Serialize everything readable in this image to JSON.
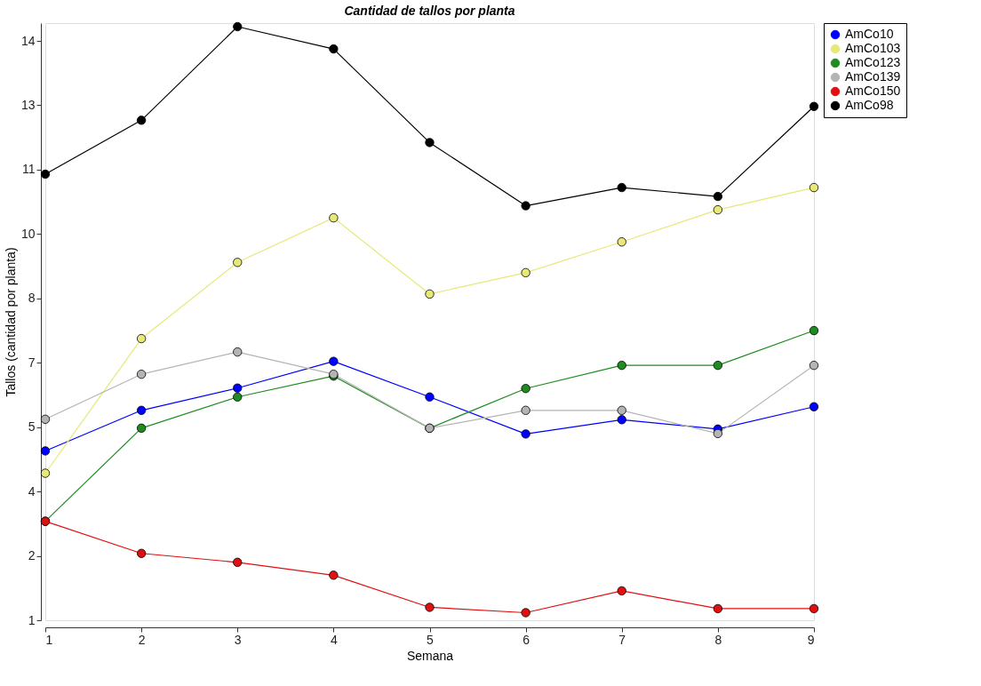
{
  "chart_data": {
    "type": "line",
    "title": "Cantidad de tallos por planta",
    "xlabel": "Semana",
    "ylabel": "Tallos (cantidad por planta)",
    "x": [
      1,
      2,
      3,
      4,
      5,
      6,
      7,
      8,
      9
    ],
    "xlim": [
      1,
      9
    ],
    "xticks": [
      1,
      2,
      3,
      4,
      5,
      6,
      7,
      8,
      9
    ],
    "ylim": [
      1,
      14.4
    ],
    "yticks": [
      1,
      {
        "value": 2.444,
        "label": "2"
      },
      {
        "value": 3.889,
        "label": "4"
      },
      {
        "value": 5.333,
        "label": "5"
      },
      {
        "value": 6.778,
        "label": "7"
      },
      {
        "value": 8.222,
        "label": "8"
      },
      {
        "value": 9.667,
        "label": "10"
      },
      {
        "value": 11.111,
        "label": "11"
      },
      {
        "value": 12.556,
        "label": "13"
      },
      14
    ],
    "grid": false,
    "legend": "top right",
    "marker": "circle",
    "line_style": "solid",
    "series": [
      {
        "name": "AmCo10",
        "color": "#0000ff",
        "values": [
          4.8,
          5.71,
          6.21,
          6.81,
          6.01,
          5.18,
          5.5,
          5.29,
          5.79
        ]
      },
      {
        "name": "AmCo103",
        "color": "#e8e878",
        "values": [
          4.3,
          7.32,
          9.03,
          10.03,
          8.32,
          8.8,
          9.49,
          10.21,
          10.71
        ]
      },
      {
        "name": "AmCo123",
        "color": "#1e8c1e",
        "values": [
          3.22,
          5.31,
          6.01,
          6.48,
          5.31,
          6.2,
          6.72,
          6.72,
          7.5
        ]
      },
      {
        "name": "AmCo139",
        "color": "#b4b4b4",
        "values": [
          5.51,
          6.52,
          7.02,
          6.52,
          5.31,
          5.71,
          5.71,
          5.19,
          6.72
        ]
      },
      {
        "name": "AmCo150",
        "color": "#e01010",
        "values": [
          3.22,
          2.5,
          2.3,
          2.01,
          1.29,
          1.17,
          1.66,
          1.26,
          1.26
        ]
      },
      {
        "name": "AmCo98",
        "color": "#000000",
        "values": [
          11.01,
          12.22,
          14.32,
          13.82,
          11.72,
          10.3,
          10.71,
          10.51,
          12.53
        ]
      }
    ]
  }
}
